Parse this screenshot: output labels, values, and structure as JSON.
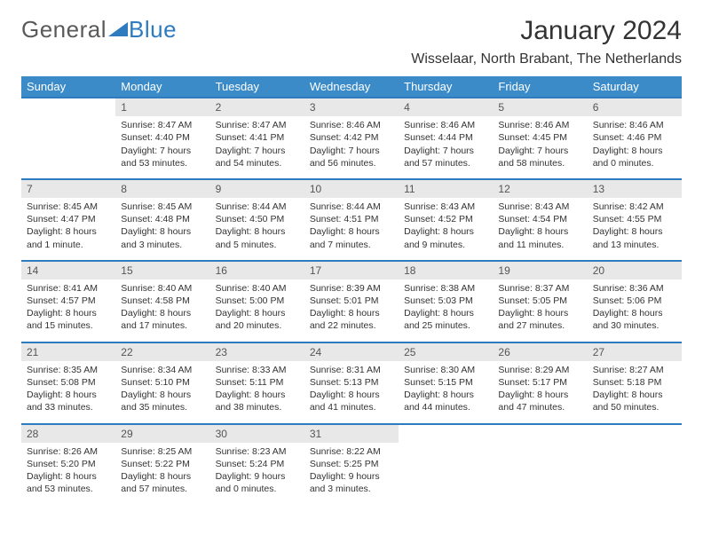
{
  "brand": {
    "part1": "General",
    "part2": "Blue"
  },
  "title": "January 2024",
  "location": "Wisselaar, North Brabant, The Netherlands",
  "weekdays": [
    "Sunday",
    "Monday",
    "Tuesday",
    "Wednesday",
    "Thursday",
    "Friday",
    "Saturday"
  ],
  "style": {
    "header_bg": "#3b8bc9",
    "header_fg": "#ffffff",
    "row_divider": "#2e7bbf",
    "daynum_bg": "#e8e8e8",
    "body_bg": "#ffffff",
    "text_color": "#333333",
    "title_fontsize": 30,
    "location_fontsize": 16,
    "weekday_fontsize": 13,
    "cell_fontsize": 10.5,
    "logo_blue": "#2e7bbf",
    "logo_gray": "#5a5a5a"
  },
  "weeks": [
    [
      null,
      {
        "n": "1",
        "sr": "Sunrise: 8:47 AM",
        "ss": "Sunset: 4:40 PM",
        "dl": "Daylight: 7 hours and 53 minutes."
      },
      {
        "n": "2",
        "sr": "Sunrise: 8:47 AM",
        "ss": "Sunset: 4:41 PM",
        "dl": "Daylight: 7 hours and 54 minutes."
      },
      {
        "n": "3",
        "sr": "Sunrise: 8:46 AM",
        "ss": "Sunset: 4:42 PM",
        "dl": "Daylight: 7 hours and 56 minutes."
      },
      {
        "n": "4",
        "sr": "Sunrise: 8:46 AM",
        "ss": "Sunset: 4:44 PM",
        "dl": "Daylight: 7 hours and 57 minutes."
      },
      {
        "n": "5",
        "sr": "Sunrise: 8:46 AM",
        "ss": "Sunset: 4:45 PM",
        "dl": "Daylight: 7 hours and 58 minutes."
      },
      {
        "n": "6",
        "sr": "Sunrise: 8:46 AM",
        "ss": "Sunset: 4:46 PM",
        "dl": "Daylight: 8 hours and 0 minutes."
      }
    ],
    [
      {
        "n": "7",
        "sr": "Sunrise: 8:45 AM",
        "ss": "Sunset: 4:47 PM",
        "dl": "Daylight: 8 hours and 1 minute."
      },
      {
        "n": "8",
        "sr": "Sunrise: 8:45 AM",
        "ss": "Sunset: 4:48 PM",
        "dl": "Daylight: 8 hours and 3 minutes."
      },
      {
        "n": "9",
        "sr": "Sunrise: 8:44 AM",
        "ss": "Sunset: 4:50 PM",
        "dl": "Daylight: 8 hours and 5 minutes."
      },
      {
        "n": "10",
        "sr": "Sunrise: 8:44 AM",
        "ss": "Sunset: 4:51 PM",
        "dl": "Daylight: 8 hours and 7 minutes."
      },
      {
        "n": "11",
        "sr": "Sunrise: 8:43 AM",
        "ss": "Sunset: 4:52 PM",
        "dl": "Daylight: 8 hours and 9 minutes."
      },
      {
        "n": "12",
        "sr": "Sunrise: 8:43 AM",
        "ss": "Sunset: 4:54 PM",
        "dl": "Daylight: 8 hours and 11 minutes."
      },
      {
        "n": "13",
        "sr": "Sunrise: 8:42 AM",
        "ss": "Sunset: 4:55 PM",
        "dl": "Daylight: 8 hours and 13 minutes."
      }
    ],
    [
      {
        "n": "14",
        "sr": "Sunrise: 8:41 AM",
        "ss": "Sunset: 4:57 PM",
        "dl": "Daylight: 8 hours and 15 minutes."
      },
      {
        "n": "15",
        "sr": "Sunrise: 8:40 AM",
        "ss": "Sunset: 4:58 PM",
        "dl": "Daylight: 8 hours and 17 minutes."
      },
      {
        "n": "16",
        "sr": "Sunrise: 8:40 AM",
        "ss": "Sunset: 5:00 PM",
        "dl": "Daylight: 8 hours and 20 minutes."
      },
      {
        "n": "17",
        "sr": "Sunrise: 8:39 AM",
        "ss": "Sunset: 5:01 PM",
        "dl": "Daylight: 8 hours and 22 minutes."
      },
      {
        "n": "18",
        "sr": "Sunrise: 8:38 AM",
        "ss": "Sunset: 5:03 PM",
        "dl": "Daylight: 8 hours and 25 minutes."
      },
      {
        "n": "19",
        "sr": "Sunrise: 8:37 AM",
        "ss": "Sunset: 5:05 PM",
        "dl": "Daylight: 8 hours and 27 minutes."
      },
      {
        "n": "20",
        "sr": "Sunrise: 8:36 AM",
        "ss": "Sunset: 5:06 PM",
        "dl": "Daylight: 8 hours and 30 minutes."
      }
    ],
    [
      {
        "n": "21",
        "sr": "Sunrise: 8:35 AM",
        "ss": "Sunset: 5:08 PM",
        "dl": "Daylight: 8 hours and 33 minutes."
      },
      {
        "n": "22",
        "sr": "Sunrise: 8:34 AM",
        "ss": "Sunset: 5:10 PM",
        "dl": "Daylight: 8 hours and 35 minutes."
      },
      {
        "n": "23",
        "sr": "Sunrise: 8:33 AM",
        "ss": "Sunset: 5:11 PM",
        "dl": "Daylight: 8 hours and 38 minutes."
      },
      {
        "n": "24",
        "sr": "Sunrise: 8:31 AM",
        "ss": "Sunset: 5:13 PM",
        "dl": "Daylight: 8 hours and 41 minutes."
      },
      {
        "n": "25",
        "sr": "Sunrise: 8:30 AM",
        "ss": "Sunset: 5:15 PM",
        "dl": "Daylight: 8 hours and 44 minutes."
      },
      {
        "n": "26",
        "sr": "Sunrise: 8:29 AM",
        "ss": "Sunset: 5:17 PM",
        "dl": "Daylight: 8 hours and 47 minutes."
      },
      {
        "n": "27",
        "sr": "Sunrise: 8:27 AM",
        "ss": "Sunset: 5:18 PM",
        "dl": "Daylight: 8 hours and 50 minutes."
      }
    ],
    [
      {
        "n": "28",
        "sr": "Sunrise: 8:26 AM",
        "ss": "Sunset: 5:20 PM",
        "dl": "Daylight: 8 hours and 53 minutes."
      },
      {
        "n": "29",
        "sr": "Sunrise: 8:25 AM",
        "ss": "Sunset: 5:22 PM",
        "dl": "Daylight: 8 hours and 57 minutes."
      },
      {
        "n": "30",
        "sr": "Sunrise: 8:23 AM",
        "ss": "Sunset: 5:24 PM",
        "dl": "Daylight: 9 hours and 0 minutes."
      },
      {
        "n": "31",
        "sr": "Sunrise: 8:22 AM",
        "ss": "Sunset: 5:25 PM",
        "dl": "Daylight: 9 hours and 3 minutes."
      },
      null,
      null,
      null
    ]
  ]
}
